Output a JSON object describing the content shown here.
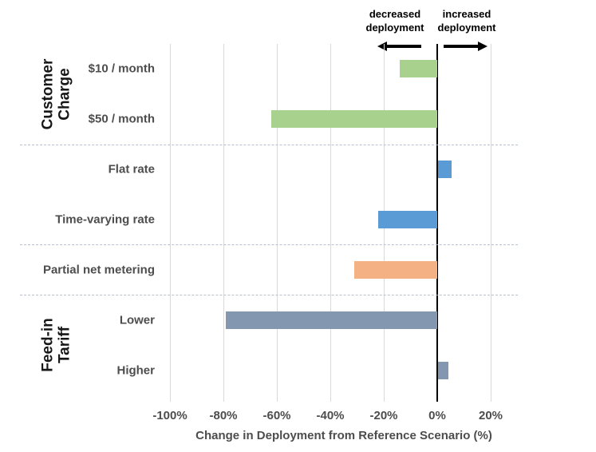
{
  "annotations": {
    "left_label": "decreased\ndeployment",
    "right_label": "increased\ndeployment"
  },
  "chart_data": {
    "type": "bar",
    "orientation": "horizontal",
    "title": "",
    "xlabel": "Change in Deployment from Reference Scenario (%)",
    "ylabel": "",
    "xlim": [
      -110,
      30
    ],
    "x_ticks": [
      -100,
      -80,
      -60,
      -40,
      -20,
      0,
      20
    ],
    "x_tick_labels": [
      "-100%",
      "-80%",
      "-60%",
      "-40%",
      "-20%",
      "0%",
      "20%"
    ],
    "grid": true,
    "legend": false,
    "rows": [
      {
        "label": "$10 / month",
        "group": "Customer Charge",
        "value": -14,
        "color": "#a9d18e"
      },
      {
        "label": "$50 / month",
        "group": "Customer Charge",
        "value": -62,
        "color": "#a9d18e"
      },
      {
        "label": "Flat rate",
        "group": "",
        "value": 5,
        "color": "#5b9bd5"
      },
      {
        "label": "Time-varying rate",
        "group": "",
        "value": -22,
        "color": "#5b9bd5"
      },
      {
        "label": "Partial net metering",
        "group": "",
        "value": -31,
        "color": "#f4b183"
      },
      {
        "label": "Lower",
        "group": "Feed-in Tariff",
        "value": -79,
        "color": "#8497b0"
      },
      {
        "label": "Higher",
        "group": "Feed-in Tariff",
        "value": 4,
        "color": "#8497b0"
      }
    ],
    "groups": [
      {
        "label": "Customer\nCharge",
        "rows": [
          0,
          1
        ]
      },
      {
        "label": "Feed-in\nTariff",
        "rows": [
          5,
          6
        ]
      }
    ],
    "separator_rows": [
      2,
      4,
      5
    ],
    "colors": {
      "grid": "#d9d9d9",
      "zero_line": "#000000",
      "separator": "#b6c2d2",
      "axis_text": "#4d4d4d"
    }
  }
}
